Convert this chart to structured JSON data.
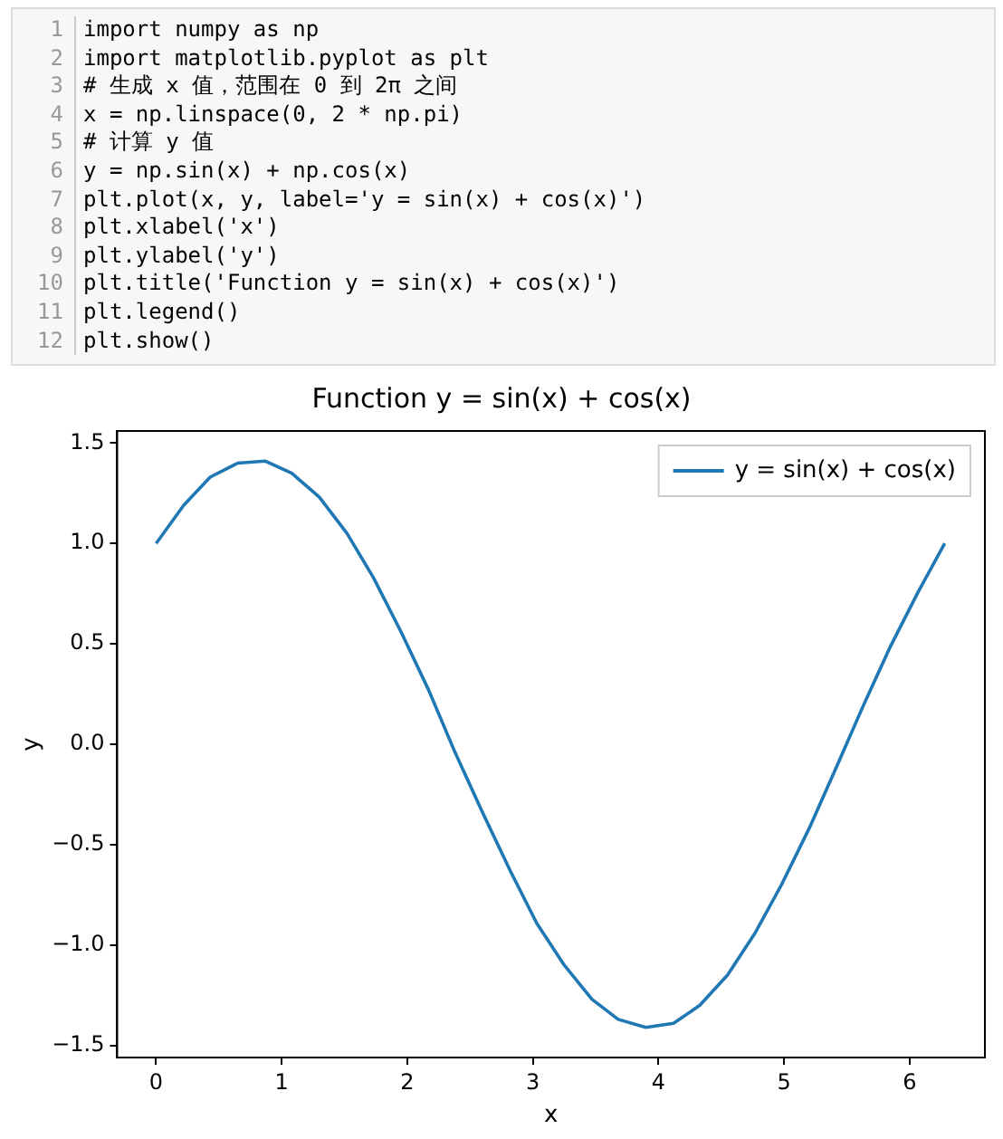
{
  "chart_data": {
    "type": "line",
    "title": "Function y = sin(x) + cos(x)",
    "xlabel": "x",
    "ylabel": "y",
    "annotations": [
      "1 import numpy as np",
      "2 import matplotlib.pyplot as plt",
      "3 # 生成 x 值，范围在 0 到 2π 之间",
      "4 x = np.linspace(0, 2 * np.pi)",
      "5 # 计算 y 值",
      "6 y = np.sin(x) + np.cos(x)",
      "7 plt.plot(x, y, label='y = sin(x) + cos(x)')",
      "8 plt.xlabel('x')",
      "9 plt.ylabel('y')",
      "10 plt.title('Function y = sin(x) + cos(x)')",
      "11 plt.legend()",
      "12 plt.show()"
    ],
    "x": [
      0,
      0.22,
      0.43,
      0.65,
      0.87,
      1.08,
      1.3,
      1.52,
      1.73,
      1.95,
      2.17,
      2.38,
      2.6,
      2.82,
      3.03,
      3.25,
      3.47,
      3.68,
      3.9,
      4.12,
      4.33,
      4.55,
      4.77,
      4.98,
      5.2,
      5.42,
      5.63,
      5.85,
      6.07,
      6.28
    ],
    "series": [
      {
        "name": "y = sin(x) + cos(x)",
        "color": "#1f77b4",
        "values": [
          1.0,
          1.19,
          1.33,
          1.4,
          1.41,
          1.35,
          1.23,
          1.05,
          0.83,
          0.56,
          0.27,
          -0.04,
          -0.34,
          -0.63,
          -0.89,
          -1.1,
          -1.27,
          -1.37,
          -1.41,
          -1.39,
          -1.3,
          -1.15,
          -0.94,
          -0.7,
          -0.42,
          -0.11,
          0.19,
          0.49,
          0.76,
          1.0
        ]
      }
    ],
    "xlim": [
      -0.31,
      6.6
    ],
    "xticks": [
      0,
      1,
      2,
      3,
      4,
      5,
      6
    ],
    "ylim": [
      -1.56,
      1.56
    ],
    "yticks": [
      {
        "value": -1.5,
        "label": "−1.5"
      },
      {
        "value": -1,
        "label": "−1.0"
      },
      {
        "value": -0.5,
        "label": "−0.5"
      },
      {
        "value": 0,
        "label": "0.0"
      },
      {
        "value": 0.5,
        "label": "0.5"
      },
      {
        "value": 1,
        "label": "1.0"
      },
      {
        "value": 1.5,
        "label": "1.5"
      }
    ],
    "grid": false,
    "legend": "top right",
    "marker": "none",
    "line_style": "solid"
  }
}
